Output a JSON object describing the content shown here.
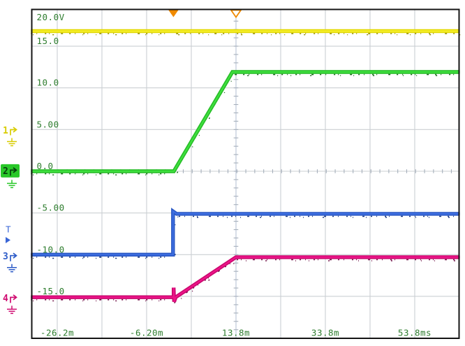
{
  "scope": {
    "screen_background": "#ffffff",
    "grid_color": "#cbcfd3",
    "center_axis_tick_color": "#a5afbb",
    "center_time_axis_color": "#b9c3d4",
    "label_color": "#2e7d2e",
    "border_color": "#141414",
    "y_axis_labels": [
      {
        "text": "20.0V",
        "v": 20
      },
      {
        "text": "15.0",
        "v": 15
      },
      {
        "text": "10.0",
        "v": 10
      },
      {
        "text": "5.00",
        "v": 5
      },
      {
        "text": "0.0",
        "v": 0
      },
      {
        "text": "-5.00",
        "v": -5
      },
      {
        "text": "-10.0",
        "v": -10
      },
      {
        "text": "-15.0",
        "v": -15
      }
    ],
    "x_axis_labels": [
      {
        "text": "-26.2m",
        "t": -26.2
      },
      {
        "text": "-6.20m",
        "t": -6.2
      },
      {
        "text": "13.8m",
        "t": 13.8
      },
      {
        "text": "33.8m",
        "t": 33.8
      },
      {
        "text": "53.8ms",
        "t": 53.8
      }
    ],
    "channels": [
      {
        "label": "1",
        "color": "#d8cc00",
        "dark": "#8f8800",
        "v_pos": 4.9,
        "selected": false
      },
      {
        "label": "2",
        "color": "#29c829",
        "dark": "#06400d",
        "v_pos": 0.05,
        "selected": true
      },
      {
        "label": "3",
        "color": "#2e5cc8",
        "dark": "#173777",
        "v_pos": -10.2,
        "selected": false
      },
      {
        "label": "4",
        "color": "#cf0a70",
        "dark": "#7c0644",
        "v_pos": -15.2,
        "selected": false
      }
    ],
    "trigger_marker": {
      "label": "T",
      "color": "#3a66d6",
      "v_label": -7.0,
      "v_arrow": -7.75
    },
    "top_markers": {
      "solid_triangle_t_ms": -0.2,
      "hollow_triangle_t_ms": 13.8,
      "triangle_color": "#f08a00"
    }
  },
  "chart_data": {
    "type": "line",
    "title": "",
    "xlabel": "",
    "ylabel": "",
    "x_unit": "ms",
    "y_unit": "V",
    "xlim_ms": [
      -32.1,
      63.9
    ],
    "ylim_V": [
      -19.7,
      19.4
    ],
    "grid": {
      "v_gridlines_ms": [
        -26.2,
        -16.2,
        -6.2,
        3.8,
        13.8,
        23.8,
        33.8,
        43.8,
        53.8
      ],
      "h_gridlines_V": [
        15,
        10,
        5,
        0,
        -5,
        -10,
        -15
      ],
      "fine_tick_axis_time_ms": 13.8,
      "fine_tick_axis_level_V": 0,
      "fine_tick_step_ms": 2,
      "fine_tick_step_V": 1
    },
    "series": [
      {
        "name": "ch1-yellow",
        "color": "#e3d800",
        "core": "#f6f02e",
        "noise": "#8a8500",
        "points": [
          [
            -32.1,
            16.8
          ],
          [
            63.9,
            16.8
          ]
        ]
      },
      {
        "name": "ch2-green",
        "color": "#27bd27",
        "core": "#3fe03f",
        "noise": "#136013",
        "points": [
          [
            -32.1,
            0.0
          ],
          [
            -0.1,
            0.0
          ],
          [
            13.0,
            11.9
          ],
          [
            63.9,
            11.9
          ]
        ]
      },
      {
        "name": "ch3-blue",
        "color": "#2a58c4",
        "core": "#3e6fe2",
        "noise": "#12307a",
        "points": [
          [
            -32.1,
            -10.0
          ],
          [
            -0.3,
            -10.0
          ],
          [
            -0.3,
            -4.8
          ],
          [
            0.5,
            -5.1
          ],
          [
            63.9,
            -5.1
          ]
        ]
      },
      {
        "name": "ch4-magenta",
        "color": "#c9086e",
        "core": "#ee1489",
        "noise": "#6e0540",
        "points": [
          [
            -32.1,
            -15.1
          ],
          [
            -0.15,
            -15.1
          ],
          [
            -0.15,
            -13.95
          ],
          [
            -0.05,
            -15.65
          ],
          [
            0.3,
            -15.1
          ],
          [
            13.8,
            -10.3
          ],
          [
            63.9,
            -10.3
          ]
        ]
      }
    ]
  }
}
